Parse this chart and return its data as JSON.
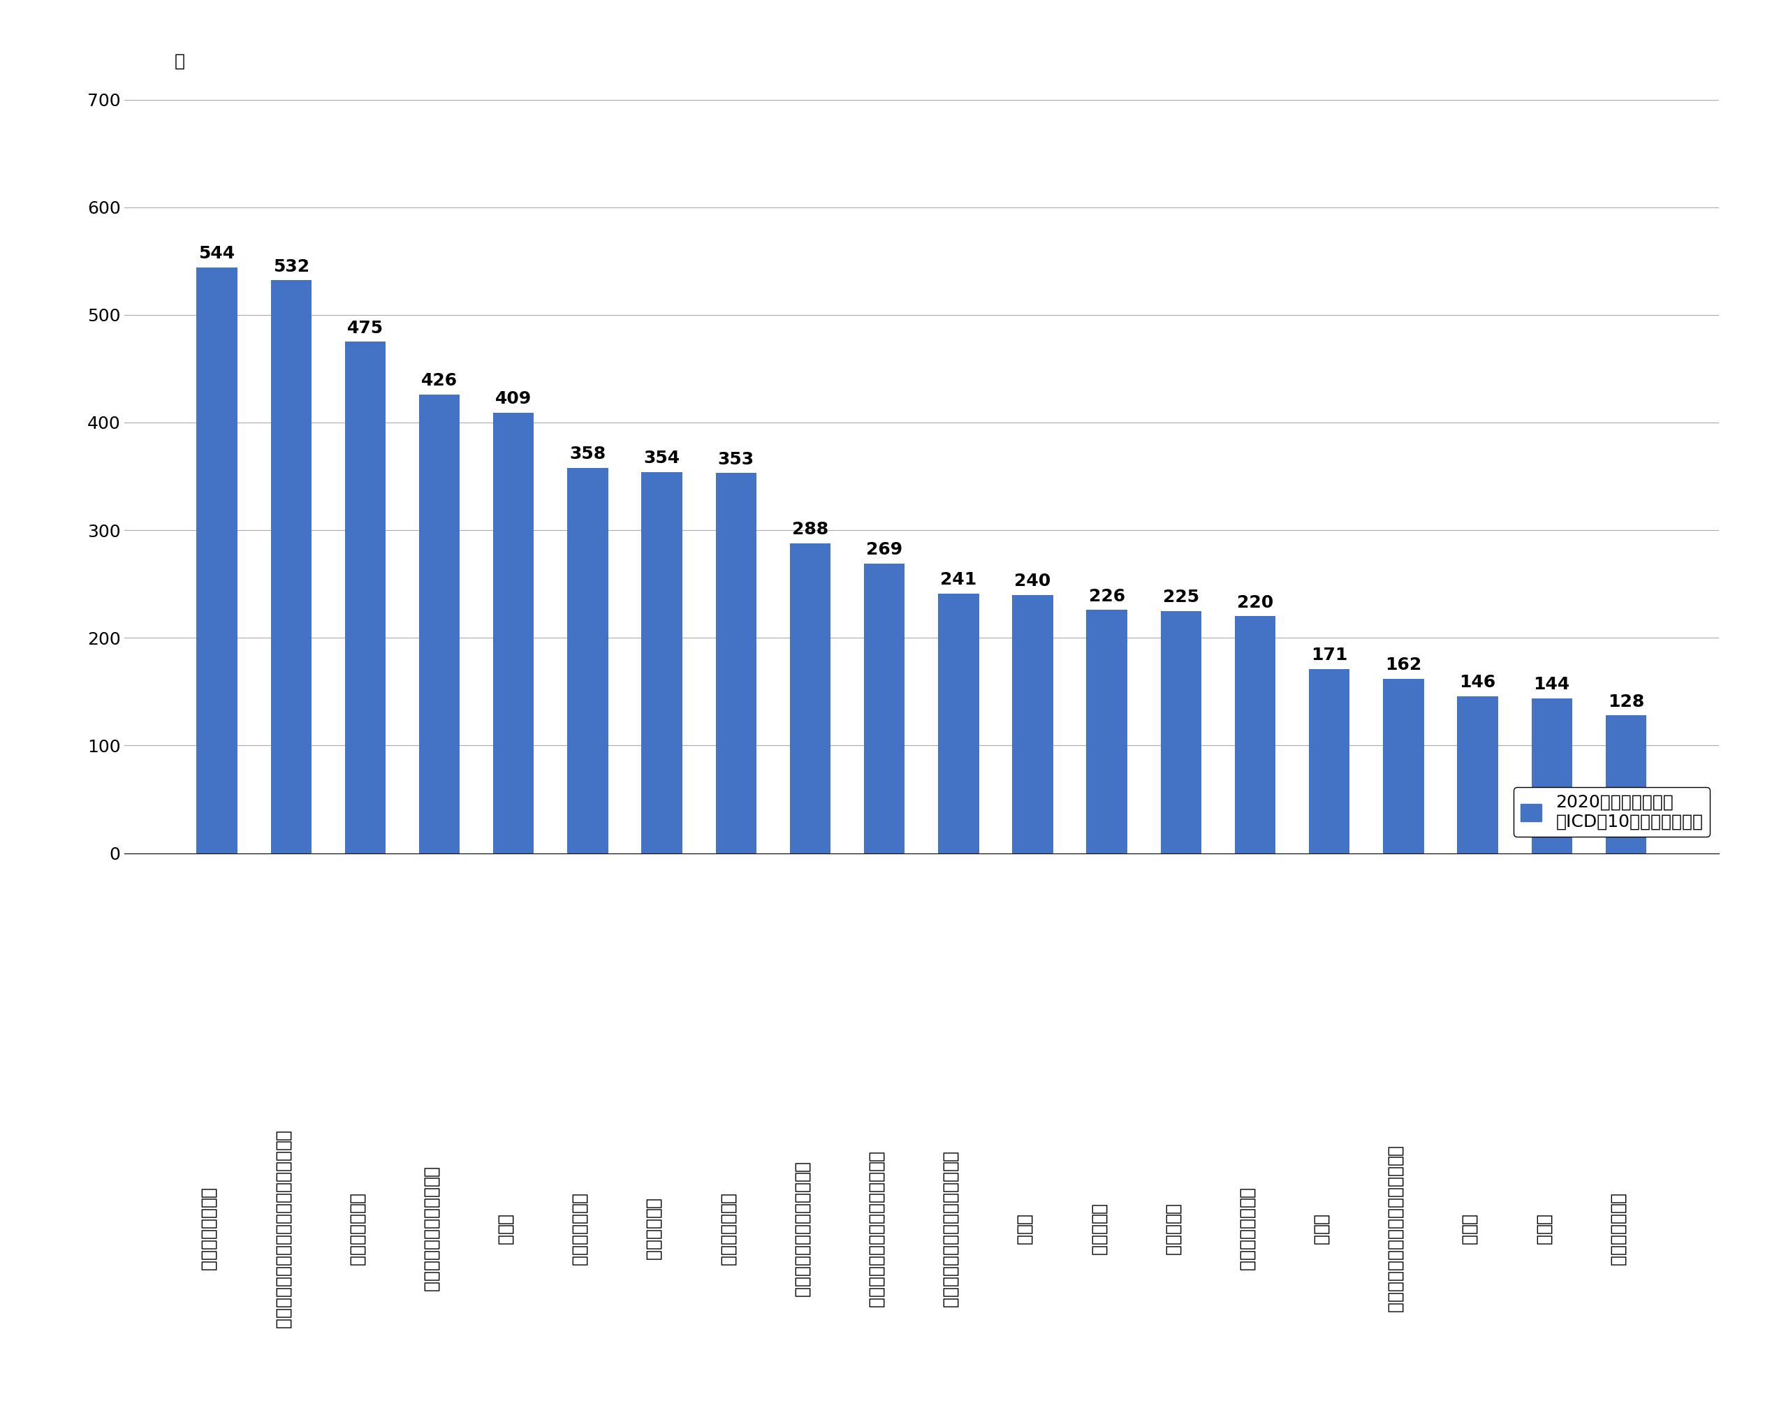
{
  "categories": [
    "大腸の悪性新生物",
    "結腸、直腸、肛門及び肛門管の良性新生物",
    "胆石症、胆嚢炎",
    "気管支及び肺の悪性新生物",
    "緑内障",
    "膵の悪性新生物",
    "老人性白内障",
    "胃の悪性新生物",
    "肝及び肝内胆管の悪性新生物",
    "有害作用、他に分類されないもの",
    "四肢の骨折（大腿骨骨折を除く）",
    "糖尿病",
    "大腿骨骨折",
    "誤嚥性肺炎",
    "乳房の悪性新生物",
    "腎不全",
    "細菌性肺炎、他に分類されないもの",
    "心不全",
    "脳梗塞",
    "腸の憩室性疾患"
  ],
  "values": [
    544,
    532,
    475,
    426,
    409,
    358,
    354,
    353,
    288,
    269,
    241,
    240,
    226,
    225,
    220,
    171,
    162,
    146,
    144,
    128
  ],
  "bar_color": "#4472C4",
  "ylabel": "人",
  "ylim": [
    0,
    700
  ],
  "yticks": [
    0,
    100,
    200,
    300,
    400,
    500,
    600,
    700
  ],
  "legend_label": "2020年度延べ患者数\n（ICD－10分類に準ずる）",
  "legend_color": "#4472C4",
  "grid_color": "#AAAAAA",
  "background_color": "#FFFFFF",
  "label_fontsize": 18,
  "value_fontsize": 18,
  "ylabel_fontsize": 18,
  "ytick_fontsize": 18,
  "legend_fontsize": 18
}
